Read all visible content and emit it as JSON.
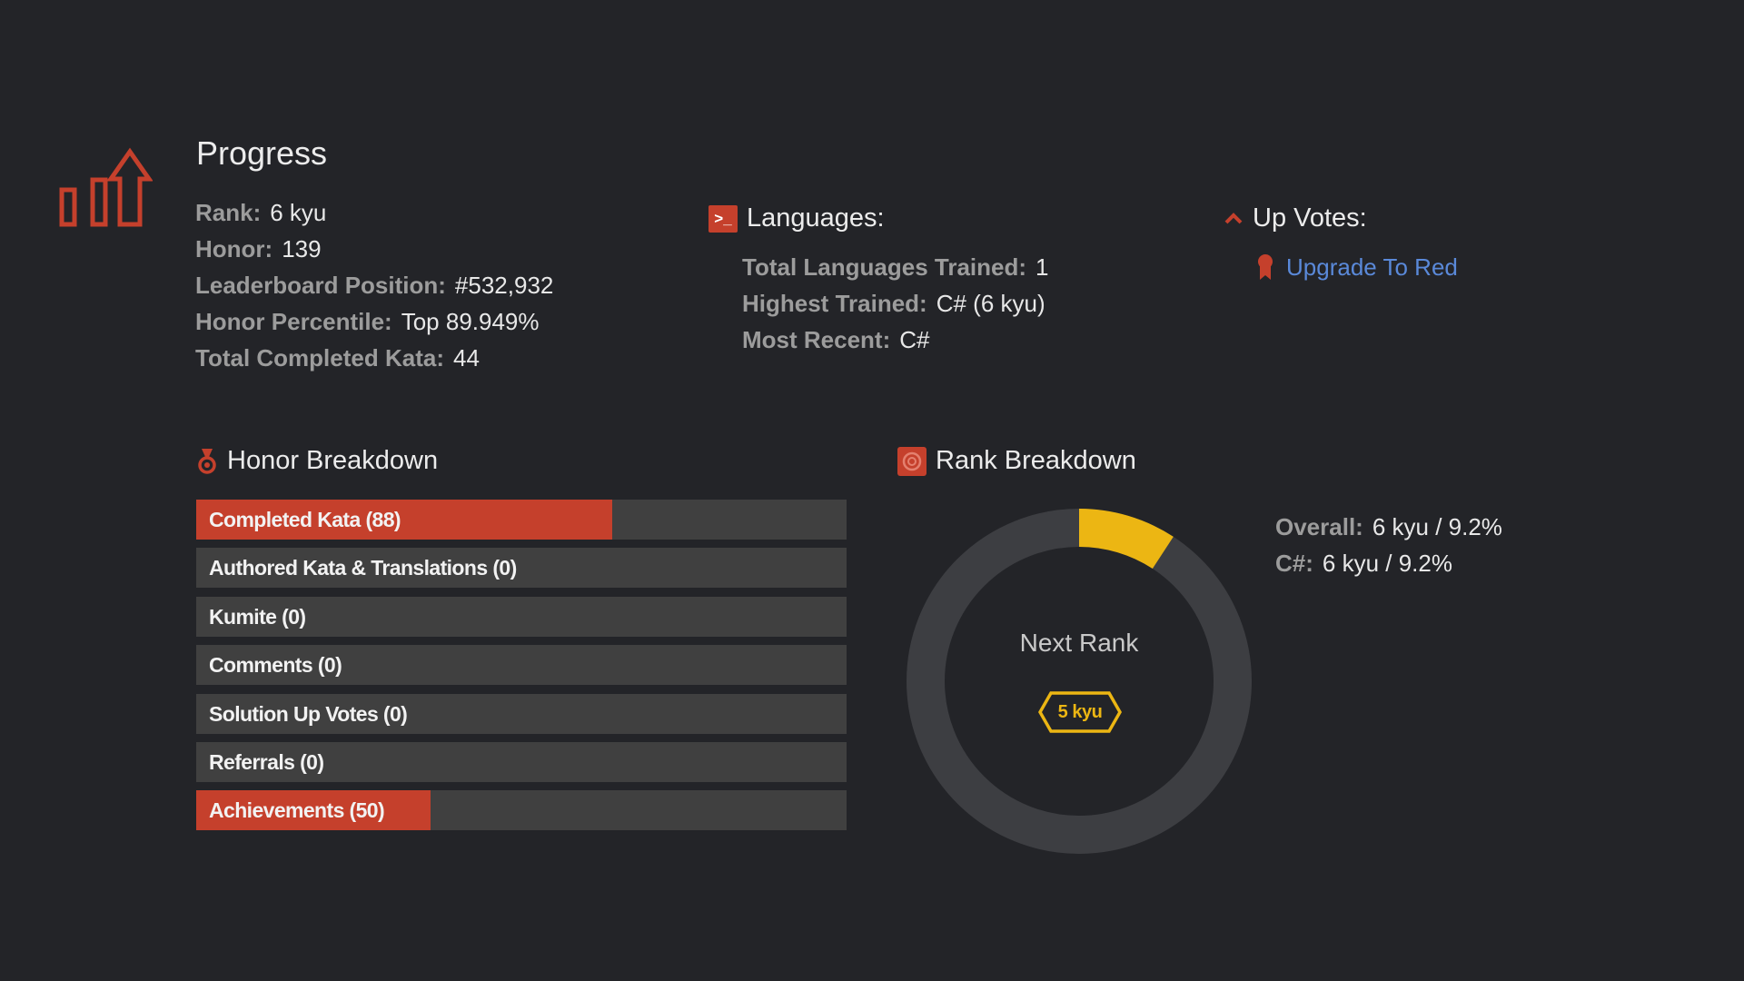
{
  "colors": {
    "background": "#232428",
    "accent_red": "#c5402c",
    "bar_track": "#404040",
    "rank_yellow": "#ecb613",
    "donut_track": "#3d3e42",
    "link_blue": "#5a89d9"
  },
  "progress": {
    "icon": "bar-chart-arrow-icon",
    "title": "Progress",
    "stats": [
      {
        "label": "Rank:",
        "value": "6 kyu"
      },
      {
        "label": "Honor:",
        "value": "139"
      },
      {
        "label": "Leaderboard Position:",
        "value": "#532,932"
      },
      {
        "label": "Honor Percentile:",
        "value": "Top 89.949%"
      },
      {
        "label": "Total Completed Kata:",
        "value": "44"
      }
    ]
  },
  "languages": {
    "icon": "terminal-icon",
    "icon_glyph": ">_",
    "title": "Languages:",
    "stats": [
      {
        "label": "Total Languages Trained:",
        "value": "1"
      },
      {
        "label": "Highest Trained:",
        "value": "C# (6 kyu)"
      },
      {
        "label": "Most Recent:",
        "value": "C#"
      }
    ]
  },
  "up_votes": {
    "icon": "chevron-up-icon",
    "title": "Up Votes:",
    "link_icon": "ribbon-icon",
    "link_label": "Upgrade To Red"
  },
  "honor_breakdown": {
    "icon": "medal-icon",
    "title": "Honor Breakdown",
    "bars": [
      {
        "label": "Completed Kata (88)",
        "fill": 0.64
      },
      {
        "label": "Authored Kata & Translations (0)",
        "fill": 0
      },
      {
        "label": "Kumite (0)",
        "fill": 0
      },
      {
        "label": "Comments (0)",
        "fill": 0
      },
      {
        "label": "Solution Up Votes (0)",
        "fill": 0
      },
      {
        "label": "Referrals (0)",
        "fill": 0
      },
      {
        "label": "Achievements (50)",
        "fill": 0.36
      }
    ]
  },
  "rank_breakdown": {
    "icon": "target-icon",
    "title": "Rank Breakdown",
    "progress_fraction": 0.092,
    "center_label": "Next Rank",
    "next_rank": "5 kyu",
    "stats": [
      {
        "label": "Overall:",
        "value": "6 kyu / 9.2%"
      },
      {
        "label": "C#:",
        "value": "6 kyu / 9.2%"
      }
    ]
  }
}
